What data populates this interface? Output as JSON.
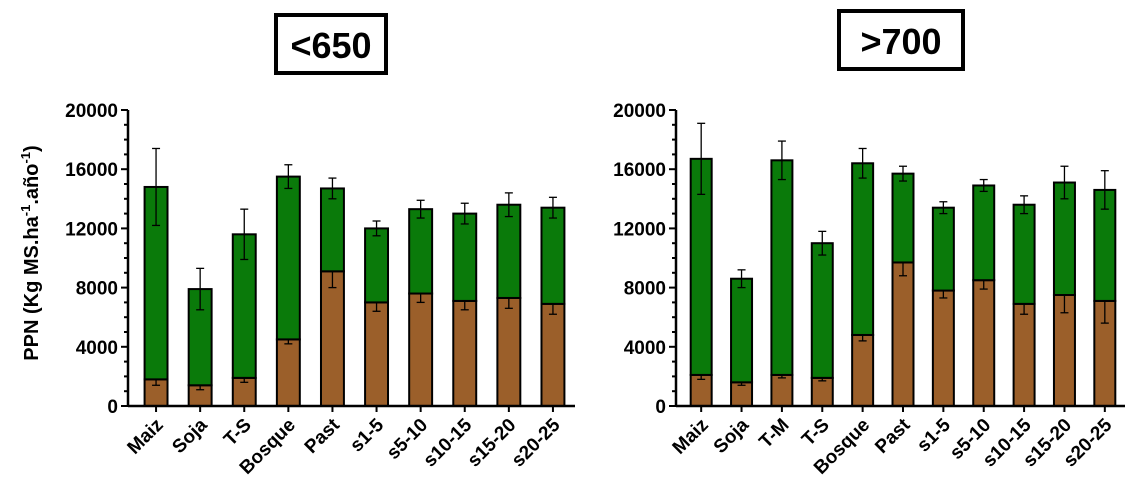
{
  "ylabel_main": "PPN (Kg MS.ha",
  "ylabel_sup1": "-1",
  "ylabel_mid": ".año",
  "ylabel_sup2": "-1",
  "ylabel_end": ")",
  "chart_data": [
    {
      "type": "bar",
      "stacked": true,
      "title": "<650",
      "categories": [
        "Maiz",
        "Soja",
        "T-S",
        "Bosque",
        "Past",
        "s1-5",
        "s5-10",
        "s10-15",
        "s15-20",
        "s20-25"
      ],
      "yticks": [
        "0",
        "4000",
        "8000",
        "12000",
        "16000",
        "20000"
      ],
      "ylim": [
        0,
        20000
      ],
      "series": [
        {
          "color": "#9b5f2a",
          "values": [
            1800,
            1400,
            1900,
            4500,
            9100,
            7000,
            7600,
            7100,
            7300,
            6900
          ],
          "errors": [
            400,
            300,
            300,
            300,
            1100,
            600,
            600,
            600,
            700,
            700
          ]
        },
        {
          "color": "#0a7a0a",
          "values": [
            13000,
            6500,
            9700,
            11000,
            5600,
            5000,
            5700,
            5900,
            6300,
            6500
          ],
          "errors": [
            2600,
            1400,
            1700,
            800,
            700,
            500,
            600,
            700,
            800,
            700
          ]
        }
      ]
    },
    {
      "type": "bar",
      "stacked": true,
      "title": ">700",
      "categories": [
        "Maiz",
        "Soja",
        "T-M",
        "T-S",
        "Bosque",
        "Past",
        "s1-5",
        "s5-10",
        "s10-15",
        "s15-20",
        "s20-25"
      ],
      "yticks": [
        "0",
        "4000",
        "8000",
        "12000",
        "16000",
        "20000"
      ],
      "ylim": [
        0,
        20000
      ],
      "series": [
        {
          "color": "#9b5f2a",
          "values": [
            2100,
            1600,
            2100,
            1900,
            4800,
            9700,
            7800,
            8500,
            6900,
            7500,
            7100
          ],
          "errors": [
            300,
            200,
            200,
            200,
            400,
            900,
            500,
            600,
            700,
            1200,
            1500
          ]
        },
        {
          "color": "#0a7a0a",
          "values": [
            14600,
            7000,
            14500,
            9100,
            11600,
            6000,
            5600,
            6400,
            6700,
            7600,
            7500
          ],
          "errors": [
            2400,
            600,
            1300,
            800,
            1000,
            500,
            400,
            400,
            600,
            1100,
            1300
          ]
        }
      ]
    }
  ]
}
